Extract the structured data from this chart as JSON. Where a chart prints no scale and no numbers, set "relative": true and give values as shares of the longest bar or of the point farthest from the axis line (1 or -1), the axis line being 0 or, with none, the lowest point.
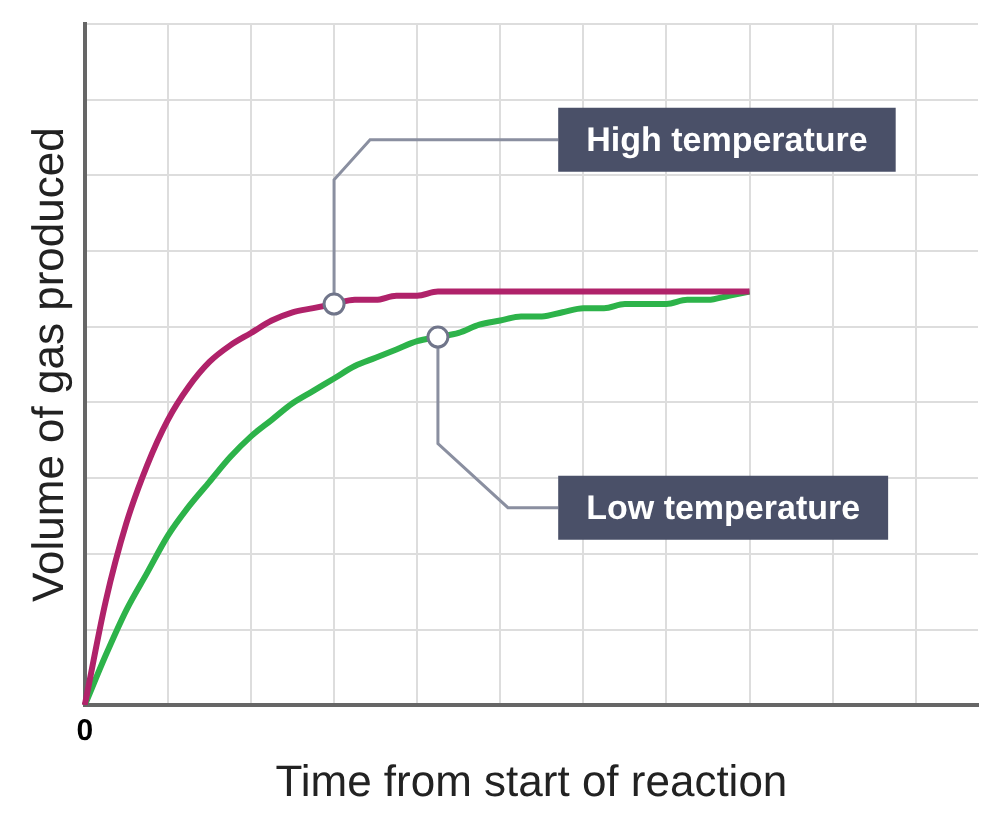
{
  "chart_data": {
    "type": "line",
    "relative": true,
    "xlabel": "Time from start of reaction",
    "ylabel": "Volume of gas produced",
    "categories": [
      null,
      null,
      null,
      null,
      null,
      null,
      null,
      null,
      null,
      null,
      null,
      null,
      null,
      null,
      null,
      null,
      null,
      null,
      null,
      null,
      null,
      null,
      null,
      null,
      null,
      null,
      null,
      null,
      null,
      null,
      null,
      null,
      null,
      null,
      null,
      null,
      null,
      null,
      null,
      null,
      null,
      null,
      null,
      null
    ],
    "series": [
      {
        "color": "#b0226a",
        "values": [
          0,
          0.25,
          0.44,
          0.58,
          0.69,
          0.77,
          0.83,
          0.87,
          0.9,
          0.93,
          0.95,
          0.96,
          0.97,
          0.98,
          0.98,
          0.99,
          0.99,
          1,
          1,
          1,
          1,
          1,
          1,
          1,
          1,
          1,
          1,
          1,
          1,
          1,
          1,
          1,
          1,
          null,
          null,
          null,
          null,
          null,
          null,
          null,
          null,
          null,
          null,
          null
        ]
      },
      {
        "color": "#2db34a",
        "values": [
          0,
          0.12,
          0.23,
          0.32,
          0.41,
          0.48,
          0.54,
          0.6,
          0.65,
          0.69,
          0.73,
          0.76,
          0.79,
          0.82,
          0.84,
          0.86,
          0.88,
          0.89,
          0.9,
          0.92,
          0.93,
          0.94,
          0.94,
          0.95,
          0.96,
          0.96,
          0.97,
          0.97,
          0.97,
          0.98,
          0.98,
          0.99,
          1,
          null,
          null,
          null,
          null,
          null,
          null,
          null,
          null,
          null,
          null,
          null
        ]
      }
    ],
    "annotations": [
      "High temperature",
      "Low temperature",
      "0"
    ],
    "grid": true,
    "legend": false,
    "tick_labels": false,
    "line_style": "solid"
  }
}
